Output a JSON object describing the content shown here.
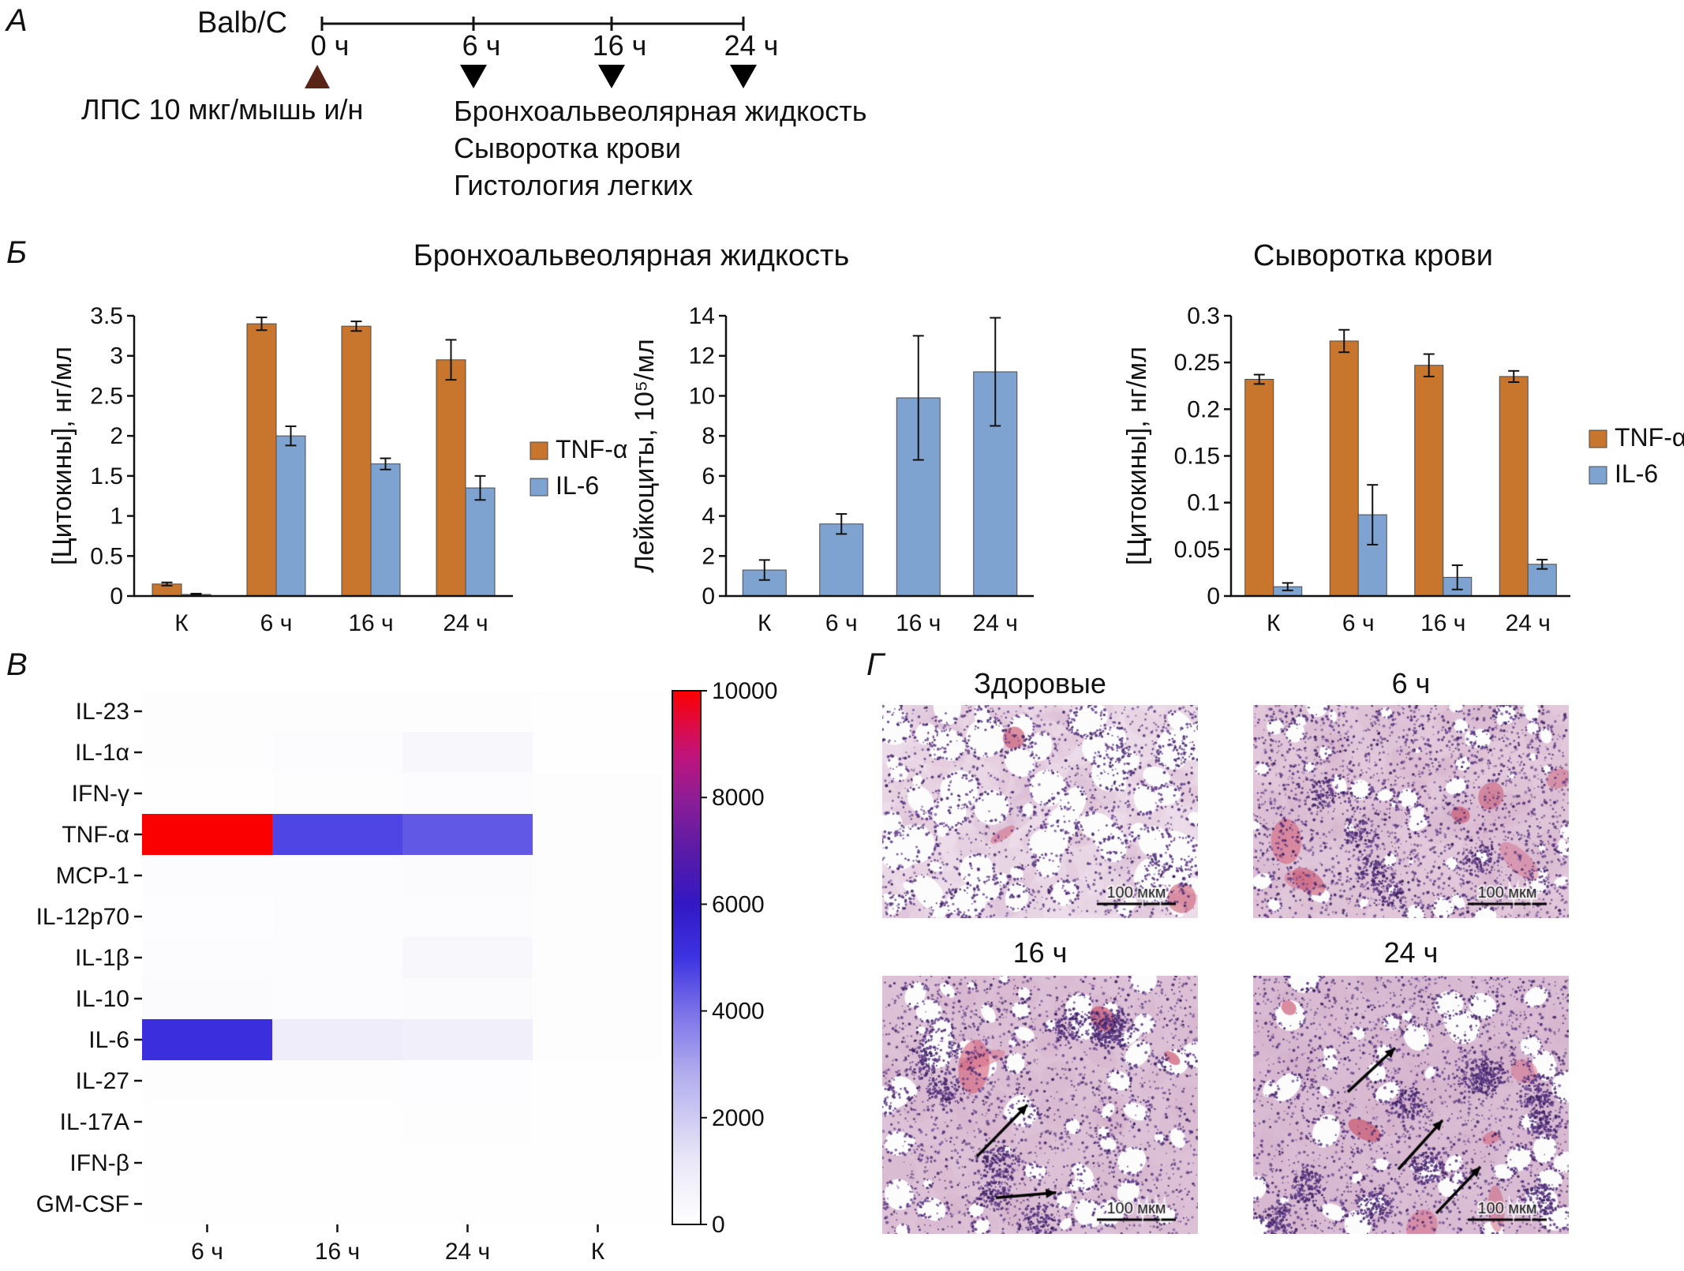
{
  "panel_a": {
    "label": "А",
    "strain": "Balb/C",
    "timeline": [
      "0 ч",
      "6 ч",
      "16 ч",
      "24 ч"
    ],
    "injection_label": "ЛПС 10 мкг/мышь и/н",
    "sampling_labels": [
      "Бронхоальвеолярная жидкость",
      "Сыворотка крови",
      "Гистология легких"
    ],
    "injection_marker_color": "#5a2318",
    "sampling_marker_color": "#000000"
  },
  "panel_b": {
    "label": "Б",
    "title_bal": "Бронхоальвеолярная жидкость",
    "title_serum": "Сыворотка крови"
  },
  "panel_v": {
    "label": "В"
  },
  "panel_g": {
    "label": "Г",
    "images": [
      {
        "id": "healthy",
        "title": "Здоровые",
        "scalebar": "100 мкм",
        "arrow_count": 0
      },
      {
        "id": "h6",
        "title": "6 ч",
        "scalebar": "100 мкм",
        "arrow_count": 0
      },
      {
        "id": "h16",
        "title": "16 ч",
        "scalebar": "100 мкм",
        "arrow_count": 2
      },
      {
        "id": "h24",
        "title": "24 ч",
        "scalebar": "100 мкм",
        "arrow_count": 3
      }
    ],
    "palette": {
      "tissue_pink": "#e7cede",
      "nuclei_purple": "#5a3585",
      "eosin_red": "#d4788f",
      "airspace": "#fdfcfd"
    }
  },
  "chart_data": [
    {
      "id": "bal_cytokines",
      "type": "bar",
      "title": "Бронхоальвеолярная жидкость",
      "categories": [
        "К",
        "6 ч",
        "16 ч",
        "24 ч"
      ],
      "series": [
        {
          "name": "TNF-α",
          "color": "#C8762E",
          "values": [
            0.15,
            3.4,
            3.37,
            2.95
          ],
          "errors": [
            0.02,
            0.08,
            0.06,
            0.25
          ]
        },
        {
          "name": "IL-6",
          "color": "#7FA3D1",
          "values": [
            0.02,
            2.0,
            1.65,
            1.35
          ],
          "errors": [
            0.01,
            0.12,
            0.07,
            0.15
          ]
        }
      ],
      "ylabel": "[Цитокины], нг/мл",
      "ylim": [
        0,
        3.5
      ],
      "yticks": [
        0,
        0.5,
        1,
        1.5,
        2,
        2.5,
        3,
        3.5
      ]
    },
    {
      "id": "bal_leukocytes",
      "type": "bar",
      "categories": [
        "К",
        "6 ч",
        "16 ч",
        "24 ч"
      ],
      "series": [
        {
          "name": "Лейкоциты",
          "color": "#7FA3D1",
          "values": [
            1.3,
            3.6,
            9.9,
            11.2
          ],
          "errors": [
            0.5,
            0.5,
            3.1,
            2.7
          ]
        }
      ],
      "ylabel": "Лейкоциты, 10⁵/мл",
      "ylim": [
        0,
        14
      ],
      "yticks": [
        0,
        2,
        4,
        6,
        8,
        10,
        12,
        14
      ]
    },
    {
      "id": "serum_cytokines",
      "type": "bar",
      "title": "Сыворотка крови",
      "categories": [
        "К",
        "6 ч",
        "16 ч",
        "24 ч"
      ],
      "series": [
        {
          "name": "TNF-α",
          "color": "#C8762E",
          "values": [
            0.232,
            0.273,
            0.247,
            0.235
          ],
          "errors": [
            0.005,
            0.012,
            0.012,
            0.006
          ]
        },
        {
          "name": "IL-6",
          "color": "#7FA3D1",
          "values": [
            0.01,
            0.087,
            0.02,
            0.034
          ],
          "errors": [
            0.004,
            0.032,
            0.013,
            0.005
          ]
        }
      ],
      "ylabel": "[Цитокины], нг/мл",
      "ylim": [
        0,
        0.3
      ],
      "yticks": [
        0,
        0.05,
        0.1,
        0.15,
        0.2,
        0.25,
        0.3
      ]
    },
    {
      "id": "cytokine_heatmap",
      "type": "heatmap",
      "rows": [
        "IL-23",
        "IL-1α",
        "IFN-γ",
        "TNF-α",
        "MCP-1",
        "IL-12p70",
        "IL-1β",
        "IL-10",
        "IL-6",
        "IL-27",
        "IL-17A",
        "IFN-β",
        "GM-CSF"
      ],
      "columns": [
        "6 ч",
        "16 ч",
        "24 ч",
        "К"
      ],
      "values": [
        [
          80,
          80,
          120,
          40
        ],
        [
          120,
          140,
          420,
          60
        ],
        [
          40,
          90,
          160,
          90
        ],
        [
          10000,
          4700,
          4400,
          90
        ],
        [
          160,
          170,
          230,
          90
        ],
        [
          130,
          140,
          180,
          90
        ],
        [
          140,
          150,
          380,
          90
        ],
        [
          220,
          190,
          230,
          110
        ],
        [
          5200,
          900,
          800,
          110
        ],
        [
          90,
          90,
          130,
          60
        ],
        [
          70,
          70,
          90,
          50
        ],
        [
          60,
          60,
          70,
          50
        ],
        [
          40,
          40,
          50,
          40
        ]
      ],
      "colorbar": {
        "min": 0,
        "max": 10000,
        "ticks": [
          0,
          2000,
          4000,
          6000,
          8000,
          10000
        ]
      },
      "colormap": [
        [
          0,
          "#ffffff"
        ],
        [
          0.12,
          "#e9e7f7"
        ],
        [
          0.28,
          "#b3aeee"
        ],
        [
          0.4,
          "#7a70e8"
        ],
        [
          0.5,
          "#3d33e2"
        ],
        [
          0.6,
          "#3318c4"
        ],
        [
          0.7,
          "#5a1ba6"
        ],
        [
          0.8,
          "#8f1d96"
        ],
        [
          0.88,
          "#c0147a"
        ],
        [
          0.94,
          "#e00a40"
        ],
        [
          1,
          "#fb0000"
        ]
      ]
    }
  ]
}
